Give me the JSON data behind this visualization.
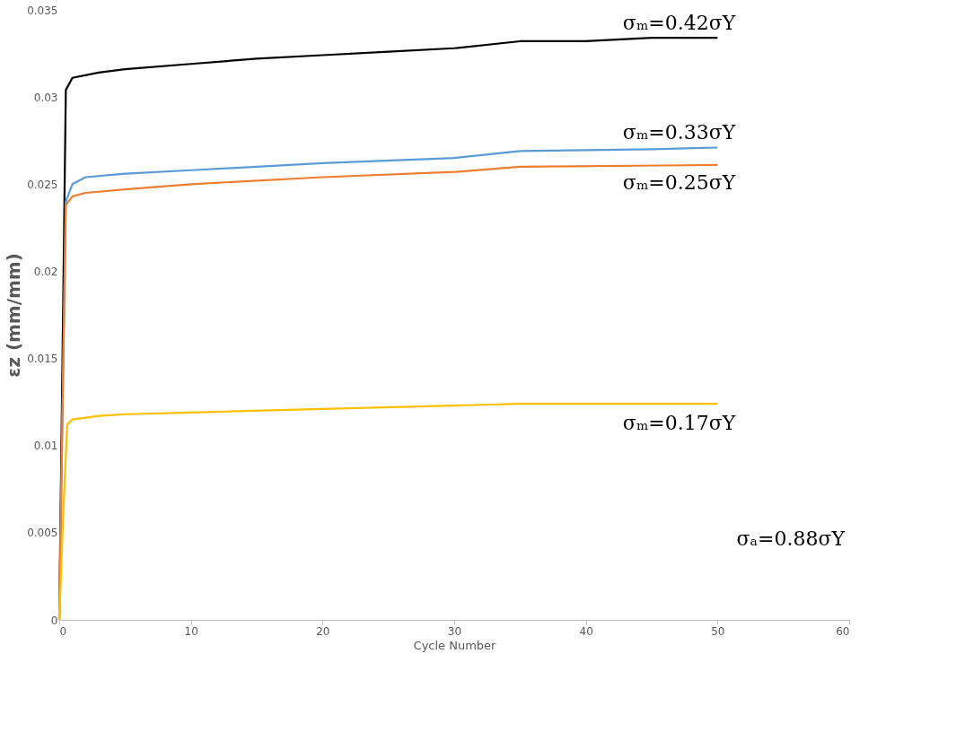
{
  "chart_data": {
    "type": "line",
    "xlabel": "Cycle Number",
    "ylabel": "εz (mm/mm)",
    "xlim": [
      0,
      60
    ],
    "xticks": [
      0,
      10,
      20,
      30,
      40,
      50,
      60
    ],
    "ylim": [
      0,
      0.035
    ],
    "yticks": [
      0,
      0.005,
      0.01,
      0.015,
      0.02,
      0.025,
      0.03,
      0.035
    ],
    "grid": false,
    "marker": "none",
    "line_style": "solid",
    "annotations": [
      "σₐ=0.88σY"
    ],
    "series": [
      {
        "name": "σₘ=0.42σY",
        "color": "#000000",
        "x": [
          0,
          0.5,
          1,
          3,
          5,
          10,
          15,
          20,
          25,
          30,
          35,
          40,
          45,
          50
        ],
        "values": [
          0,
          0.0304,
          0.0311,
          0.0314,
          0.0316,
          0.0319,
          0.0322,
          0.0324,
          0.0326,
          0.0328,
          0.0332,
          0.0332,
          0.0334,
          0.0334
        ]
      },
      {
        "name": "σₘ=0.33σY",
        "color": "#5b9bd5",
        "x": [
          0,
          0.5,
          1,
          2,
          5,
          10,
          20,
          30,
          35,
          45,
          50
        ],
        "values": [
          0,
          0.024,
          0.025,
          0.0254,
          0.0256,
          0.0258,
          0.0262,
          0.0265,
          0.0269,
          0.027,
          0.0271
        ]
      },
      {
        "name": "σₘ=0.25σY",
        "color": "#ed7d31",
        "x": [
          0,
          0.5,
          1,
          2,
          5,
          10,
          20,
          30,
          35,
          50
        ],
        "values": [
          0,
          0.0238,
          0.0243,
          0.0245,
          0.0247,
          0.025,
          0.0254,
          0.0257,
          0.026,
          0.0261
        ]
      },
      {
        "name": "σₘ=0.17σY",
        "color": "#ffc000",
        "x": [
          0,
          0.3,
          0.6,
          1,
          3,
          5,
          10,
          20,
          30,
          35,
          50
        ],
        "values": [
          0,
          0.006,
          0.0112,
          0.0115,
          0.0117,
          0.0118,
          0.0119,
          0.0121,
          0.0123,
          0.0124,
          0.0124
        ]
      }
    ]
  }
}
